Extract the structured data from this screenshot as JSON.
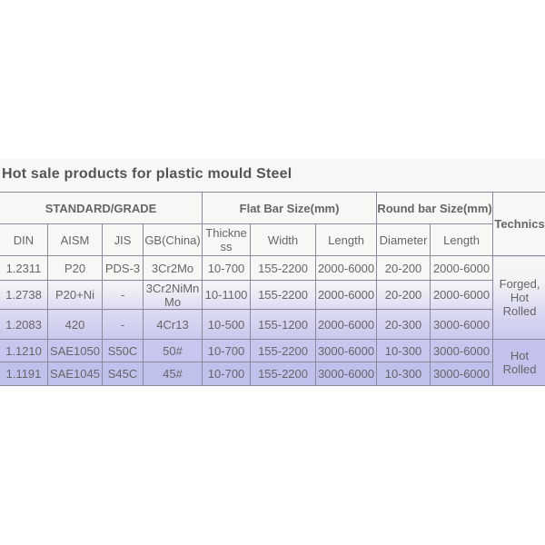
{
  "title": "Hot sale products for plastic mould Steel",
  "header": {
    "group1": "STANDARD/GRADE",
    "group2": "Flat Bar Size(mm)",
    "group3": "Round bar Size(mm)",
    "technics": "Technics",
    "columns": [
      "DIN",
      "AISM",
      "JIS",
      "GB(China)",
      "Thickness",
      "Width",
      "Length",
      "Diameter",
      "Length"
    ]
  },
  "rows": [
    [
      "1.2311",
      "P20",
      "PDS-3",
      "3Cr2Mo",
      "10-700",
      "155-2200",
      "2000-6000",
      "20-200",
      "2000-6000"
    ],
    [
      "1.2738",
      "P20+Ni",
      "-",
      "3Cr2NiMnMo",
      "10-1100",
      "155-2200",
      "2000-6000",
      "20-200",
      "2000-6000"
    ],
    [
      "1.2083",
      "420",
      "-",
      "4Cr13",
      "10-500",
      "155-1200",
      "2000-6000",
      "20-300",
      "3000-6000"
    ],
    [
      "1.1210",
      "SAE1050",
      "S50C",
      "50#",
      "10-700",
      "155-2200",
      "3000-6000",
      "10-300",
      "3000-6000"
    ],
    [
      "1.1191",
      "SAE1045",
      "S45C",
      "45#",
      "10-700",
      "155-2200",
      "3000-6000",
      "10-300",
      "3000-6000"
    ]
  ],
  "technics_groups": [
    "Forged, Hot Rolled",
    "Hot Rolled"
  ]
}
